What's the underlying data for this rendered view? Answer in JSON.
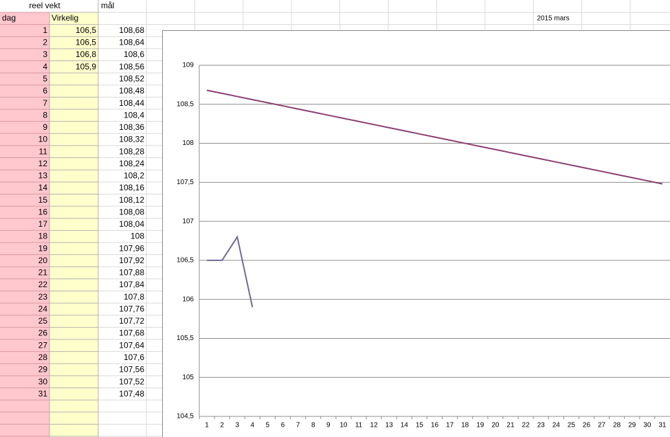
{
  "sheet": {
    "header_left": "reel vekt",
    "header_right": "mål",
    "title": "2015 mars",
    "column_headers": [
      "dag",
      "Virkelig"
    ],
    "rows": [
      {
        "dag": "1",
        "virkelig": "106,5",
        "maal": "108,68"
      },
      {
        "dag": "2",
        "virkelig": "106,5",
        "maal": "108,64"
      },
      {
        "dag": "3",
        "virkelig": "106,8",
        "maal": "108,6"
      },
      {
        "dag": "4",
        "virkelig": "105,9",
        "maal": "108,56"
      },
      {
        "dag": "5",
        "maal": "108,52"
      },
      {
        "dag": "6",
        "maal": "108,48"
      },
      {
        "dag": "7",
        "maal": "108,44"
      },
      {
        "dag": "8",
        "maal": "108,4"
      },
      {
        "dag": "9",
        "maal": "108,36"
      },
      {
        "dag": "10",
        "maal": "108,32"
      },
      {
        "dag": "11",
        "maal": "108,28"
      },
      {
        "dag": "12",
        "maal": "108,24"
      },
      {
        "dag": "13",
        "maal": "108,2"
      },
      {
        "dag": "14",
        "maal": "108,16"
      },
      {
        "dag": "15",
        "maal": "108,12"
      },
      {
        "dag": "16",
        "maal": "108,08"
      },
      {
        "dag": "17",
        "maal": "108,04"
      },
      {
        "dag": "18",
        "maal": "108"
      },
      {
        "dag": "19",
        "maal": "107,96"
      },
      {
        "dag": "20",
        "maal": "107,92"
      },
      {
        "dag": "21",
        "maal": "107,88"
      },
      {
        "dag": "22",
        "maal": "107,84"
      },
      {
        "dag": "23",
        "maal": "107,8"
      },
      {
        "dag": "24",
        "maal": "107,76"
      },
      {
        "dag": "25",
        "maal": "107,72"
      },
      {
        "dag": "26",
        "maal": "107,68"
      },
      {
        "dag": "27",
        "maal": "107,64"
      },
      {
        "dag": "28",
        "maal": "107,6"
      },
      {
        "dag": "29",
        "maal": "107,56"
      },
      {
        "dag": "30",
        "maal": "107,52"
      },
      {
        "dag": "31",
        "maal": "107,48"
      }
    ]
  },
  "chart_data": {
    "type": "line",
    "categories": [
      "1",
      "2",
      "3",
      "4",
      "5",
      "6",
      "7",
      "8",
      "9",
      "10",
      "11",
      "12",
      "13",
      "14",
      "15",
      "16",
      "17",
      "18",
      "19",
      "20",
      "21",
      "22",
      "23",
      "24",
      "25",
      "26",
      "27",
      "28",
      "29",
      "30",
      "31"
    ],
    "series": [
      {
        "name": "mål",
        "color": "#8a3f72",
        "values": [
          108.68,
          108.64,
          108.6,
          108.56,
          108.52,
          108.48,
          108.44,
          108.4,
          108.36,
          108.32,
          108.28,
          108.24,
          108.2,
          108.16,
          108.12,
          108.08,
          108.04,
          108,
          107.96,
          107.92,
          107.88,
          107.84,
          107.8,
          107.76,
          107.72,
          107.68,
          107.64,
          107.6,
          107.56,
          107.52,
          107.48
        ]
      },
      {
        "name": "Virkelig",
        "color": "#6e6a9c",
        "values": [
          106.5,
          106.5,
          106.8,
          105.9,
          null,
          null,
          null,
          null,
          null,
          null,
          null,
          null,
          null,
          null,
          null,
          null,
          null,
          null,
          null,
          null,
          null,
          null,
          null,
          null,
          null,
          null,
          null,
          null,
          null,
          null,
          null
        ]
      }
    ],
    "ylim": [
      104.5,
      109
    ],
    "yticks": [
      {
        "value": 104.5,
        "label": "104,5"
      },
      105,
      {
        "value": 105.5,
        "label": "105,5"
      },
      106,
      {
        "value": 106.5,
        "label": "106,5"
      },
      107,
      {
        "value": 107.5,
        "label": "107,5"
      },
      108,
      {
        "value": 108.5,
        "label": "108,5"
      },
      109
    ],
    "grid": true,
    "legend": false
  }
}
